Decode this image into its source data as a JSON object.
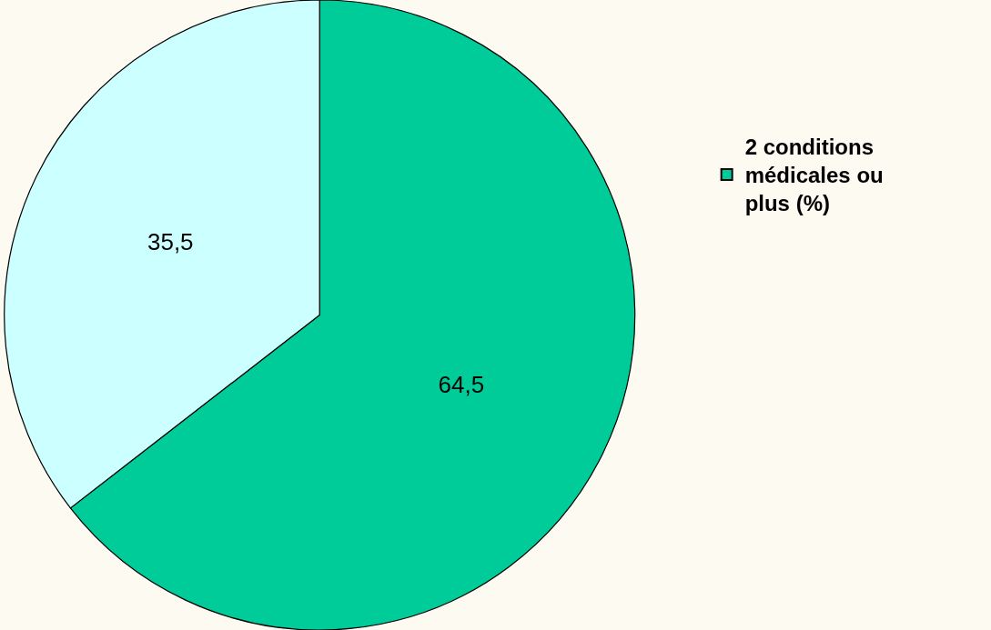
{
  "chart_data": {
    "type": "pie",
    "categories": [
      "2 conditions médicales ou plus (%)",
      null
    ],
    "values": [
      64.5,
      35.5
    ],
    "value_labels": [
      "64,5",
      "35,5"
    ],
    "colors": [
      "#00cc99",
      "#ccffff"
    ],
    "legend": "top right"
  }
}
